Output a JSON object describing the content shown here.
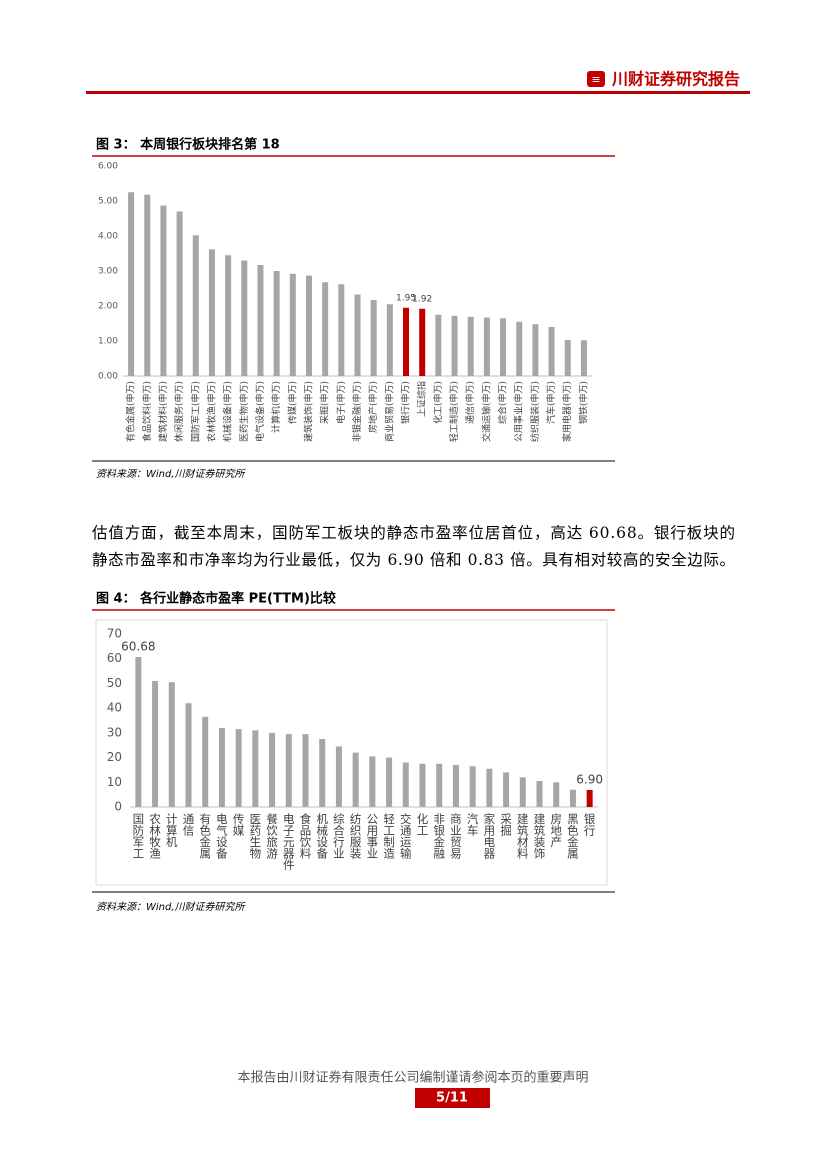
{
  "header": {
    "title": "川财证券研究报告"
  },
  "chart_data": [
    {
      "type": "bar",
      "title": "图 3： 本周银行板块排名第 18",
      "source": "资料来源：Wind,川财证券研究所",
      "categories": [
        "有色金属(申万)",
        "食品饮料(申万)",
        "建筑材料(申万)",
        "休闲服务(申万)",
        "国防军工(申万)",
        "农林牧渔(申万)",
        "机械设备(申万)",
        "医药生物(申万)",
        "电气设备(申万)",
        "计算机(申万)",
        "传媒(申万)",
        "建筑装饰(申万)",
        "采掘(申万)",
        "电子(申万)",
        "非银金融(申万)",
        "房地产(申万)",
        "商业贸易(申万)",
        "银行(申万)",
        "上证综指",
        "化工(申万)",
        "轻工制造(申万)",
        "通信(申万)",
        "交通运输(申万)",
        "综合(申万)",
        "公用事业(申万)",
        "纺织服装(申万)",
        "汽车(申万)",
        "家用电器(申万)",
        "钢铁(申万)"
      ],
      "values": [
        5.25,
        5.18,
        4.87,
        4.7,
        4.02,
        3.62,
        3.45,
        3.3,
        3.17,
        3.0,
        2.92,
        2.87,
        2.68,
        2.62,
        2.33,
        2.17,
        2.05,
        1.95,
        1.92,
        1.75,
        1.72,
        1.69,
        1.67,
        1.65,
        1.55,
        1.48,
        1.4,
        1.03,
        1.02
      ],
      "value_labels": [
        null,
        null,
        null,
        null,
        null,
        null,
        null,
        null,
        null,
        null,
        null,
        null,
        null,
        null,
        null,
        null,
        null,
        "1.95",
        "1.92",
        null,
        null,
        null,
        null,
        null,
        null,
        null,
        null,
        null,
        null
      ],
      "colors": [
        "#a6a6a6",
        "#a6a6a6",
        "#a6a6a6",
        "#a6a6a6",
        "#a6a6a6",
        "#a6a6a6",
        "#a6a6a6",
        "#a6a6a6",
        "#a6a6a6",
        "#a6a6a6",
        "#a6a6a6",
        "#a6a6a6",
        "#a6a6a6",
        "#a6a6a6",
        "#a6a6a6",
        "#a6a6a6",
        "#a6a6a6",
        "#c00000",
        "#c00000",
        "#a6a6a6",
        "#a6a6a6",
        "#a6a6a6",
        "#a6a6a6",
        "#a6a6a6",
        "#a6a6a6",
        "#a6a6a6",
        "#a6a6a6",
        "#a6a6a6",
        "#a6a6a6"
      ],
      "ylim": [
        0,
        6
      ],
      "yticks": [
        {
          "value": 0,
          "label": "0.00"
        },
        {
          "value": 1,
          "label": "1.00"
        },
        {
          "value": 2,
          "label": "2.00"
        },
        {
          "value": 3,
          "label": "3.00"
        },
        {
          "value": 4,
          "label": "4.00"
        },
        {
          "value": 5,
          "label": "5.00"
        },
        {
          "value": 6,
          "label": "6.00"
        }
      ],
      "grid": false,
      "label_orientation": "rotated"
    },
    {
      "type": "bar",
      "title": "图 4： 各行业静态市盈率 PE(TTM)比较",
      "source": "资料来源：Wind,川财证券研究所",
      "categories": [
        "国防军工",
        "农林牧渔",
        "计算机",
        "通信",
        "有色金属",
        "电气设备",
        "传媒",
        "医药生物",
        "餐饮旅游",
        "电子元器件",
        "食品饮料",
        "机械设备",
        "综合行业",
        "纺织服装",
        "公用事业",
        "轻工制造",
        "交通运输",
        "化工",
        "非银金融",
        "商业贸易",
        "汽车",
        "家用电器",
        "采掘",
        "建筑材料",
        "建筑装饰",
        "房地产",
        "黑色金属",
        "银行"
      ],
      "values": [
        60.68,
        51,
        50.5,
        42,
        36.5,
        32,
        31.5,
        31,
        30,
        29.5,
        29.5,
        27.5,
        24.5,
        22,
        20.5,
        20,
        18,
        17.5,
        17.5,
        17,
        16.5,
        15.5,
        14,
        12,
        10.5,
        10,
        7,
        6.9
      ],
      "value_labels": [
        "60.68",
        null,
        null,
        null,
        null,
        null,
        null,
        null,
        null,
        null,
        null,
        null,
        null,
        null,
        null,
        null,
        null,
        null,
        null,
        null,
        null,
        null,
        null,
        null,
        null,
        null,
        null,
        "6.90"
      ],
      "colors": [
        "#a6a6a6",
        "#a6a6a6",
        "#a6a6a6",
        "#a6a6a6",
        "#a6a6a6",
        "#a6a6a6",
        "#a6a6a6",
        "#a6a6a6",
        "#a6a6a6",
        "#a6a6a6",
        "#a6a6a6",
        "#a6a6a6",
        "#a6a6a6",
        "#a6a6a6",
        "#a6a6a6",
        "#a6a6a6",
        "#a6a6a6",
        "#a6a6a6",
        "#a6a6a6",
        "#a6a6a6",
        "#a6a6a6",
        "#a6a6a6",
        "#a6a6a6",
        "#a6a6a6",
        "#a6a6a6",
        "#a6a6a6",
        "#a6a6a6",
        "#c00000"
      ],
      "ylim": [
        0,
        70
      ],
      "yticks": [
        0,
        10,
        20,
        30,
        40,
        50,
        60,
        70
      ],
      "grid": false,
      "label_orientation": "upright"
    }
  ],
  "paragraph": {
    "lines": [
      "估值方面，截至本周末，国防军工板块的静态市盈率位居首位，高达 60.68。银行板块的",
      "静态市盈率和市净率均为行业最低，仅为 6.90 倍和 0.83 倍。具有相对较高的安全边际。"
    ]
  },
  "footer": {
    "disclaimer": "本报告由川财证券有限责任公司编制谨请参阅本页的重要声明",
    "page": "5/11"
  }
}
